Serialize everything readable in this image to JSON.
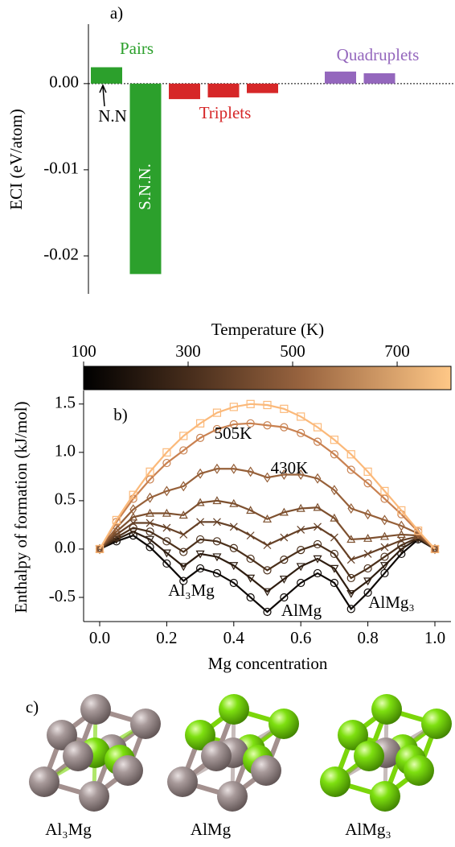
{
  "chart_data": [
    {
      "type": "bar",
      "panel_label": "a)",
      "y_label": "ECI (eV/atom)",
      "categories": [
        null,
        null,
        null,
        null,
        null,
        null,
        null,
        null
      ],
      "series": [
        {
          "name": "Pairs",
          "color": "#2ca02c",
          "values": [
            0.0019,
            -0.0221,
            null,
            null,
            null,
            null,
            null,
            null
          ]
        },
        {
          "name": "Triplets",
          "color": "#d62728",
          "values": [
            null,
            null,
            -0.0018,
            -0.0016,
            -0.0011,
            null,
            null,
            null
          ]
        },
        {
          "name": "Quadruplets",
          "color": "#9467bd",
          "values": [
            null,
            null,
            null,
            null,
            null,
            null,
            0.0014,
            0.0012
          ]
        }
      ],
      "annotations": [
        "N.N",
        "S.N.N."
      ],
      "ylim": [
        -0.0244,
        0.0069
      ],
      "yticks": [
        {
          "value": 0,
          "label": "0.00"
        },
        {
          "value": -0.01,
          "label": "-0.01"
        },
        {
          "value": -0.02,
          "label": "-0.02"
        }
      ]
    },
    {
      "type": "line",
      "panel_label": "b)",
      "x_label": "Mg concentration",
      "y_label": "Enthalpy of formation (kJ/mol)",
      "x": [
        0,
        0.05,
        0.1,
        0.15,
        0.2,
        0.25,
        0.3,
        0.35,
        0.4,
        0.45,
        0.5,
        0.55,
        0.6,
        0.65,
        0.7,
        0.75,
        0.8,
        0.85,
        0.9,
        0.95,
        1
      ],
      "series": [
        {
          "color": "#0d0805",
          "marker": "circle",
          "values": [
            0,
            0.08,
            0.14,
            0.02,
            -0.15,
            -0.33,
            -0.2,
            -0.25,
            -0.35,
            -0.5,
            -0.65,
            -0.5,
            -0.35,
            -0.25,
            -0.35,
            -0.62,
            -0.45,
            -0.25,
            -0.05,
            0.1,
            0
          ]
        },
        {
          "color": "#2e1d10",
          "marker": "triangle-down",
          "values": [
            0,
            0.1,
            0.18,
            0.1,
            -0.04,
            -0.18,
            -0.05,
            -0.08,
            -0.17,
            -0.3,
            -0.44,
            -0.31,
            -0.18,
            -0.1,
            -0.2,
            -0.46,
            -0.33,
            -0.17,
            0,
            0.11,
            0
          ]
        },
        {
          "color": "#4b301b",
          "marker": "circle",
          "values": [
            0,
            0.12,
            0.22,
            0.18,
            0.08,
            -0.03,
            0.1,
            0.08,
            0.01,
            -0.1,
            -0.22,
            -0.11,
            -0.01,
            0.05,
            -0.05,
            -0.3,
            -0.2,
            -0.08,
            0.04,
            0.12,
            0
          ]
        },
        {
          "color": "#654026",
          "marker": "x",
          "values": [
            0,
            0.15,
            0.27,
            0.27,
            0.22,
            0.15,
            0.28,
            0.28,
            0.23,
            0.14,
            0.04,
            0.12,
            0.2,
            0.23,
            0.12,
            -0.11,
            -0.05,
            0.02,
            0.09,
            0.13,
            0
          ]
        },
        {
          "color": "#7d502f",
          "marker": "triangle",
          "values": [
            0,
            0.18,
            0.33,
            0.37,
            0.37,
            0.35,
            0.48,
            0.5,
            0.47,
            0.4,
            0.31,
            0.38,
            0.42,
            0.43,
            0.32,
            0.1,
            0.11,
            0.13,
            0.15,
            0.14,
            0
          ]
        },
        {
          "color": "#966039",
          "marker": "diamond",
          "values": [
            0,
            0.22,
            0.41,
            0.53,
            0.6,
            0.65,
            0.78,
            0.83,
            0.83,
            0.8,
            0.74,
            0.77,
            0.77,
            0.73,
            0.61,
            0.42,
            0.36,
            0.3,
            0.24,
            0.16,
            0
          ]
        },
        {
          "color": "#c98150",
          "marker": "circle",
          "values": [
            0,
            0.28,
            0.52,
            0.72,
            0.89,
            1.02,
            1.15,
            1.24,
            1.29,
            1.3,
            1.28,
            1.26,
            1.2,
            1.11,
            0.98,
            0.82,
            0.68,
            0.52,
            0.36,
            0.18,
            0
          ]
        },
        {
          "color": "#fbb97a",
          "marker": "square",
          "values": [
            0,
            0.3,
            0.56,
            0.8,
            1,
            1.17,
            1.3,
            1.41,
            1.47,
            1.5,
            1.49,
            1.45,
            1.37,
            1.26,
            1.13,
            0.98,
            0.8,
            0.6,
            0.4,
            0.19,
            0
          ]
        }
      ],
      "annotations": [
        "505K",
        "430K",
        "Al₃Mg",
        "AlMg",
        "AlMg₃"
      ],
      "colorbar": {
        "label": "Temperature (K)",
        "clim": [
          100,
          803
        ],
        "ticks": [
          100,
          300,
          500,
          700
        ]
      },
      "xlim": [
        -0.048,
        1.048
      ],
      "xticks": [
        {
          "value": 0,
          "label": "0.0"
        },
        0.2,
        0.4,
        0.6,
        0.8,
        {
          "value": 1,
          "label": "1.0"
        }
      ],
      "ylim": [
        -0.75,
        1.64
      ],
      "yticks": [
        -0.5,
        {
          "value": 0,
          "label": "0.0"
        },
        0.5,
        {
          "value": 1,
          "label": "1.0"
        },
        1.5
      ]
    }
  ],
  "panel_c": {
    "label": "c)",
    "names": [
      "Al₃Mg",
      "AlMg",
      "AlMg₃"
    ]
  }
}
